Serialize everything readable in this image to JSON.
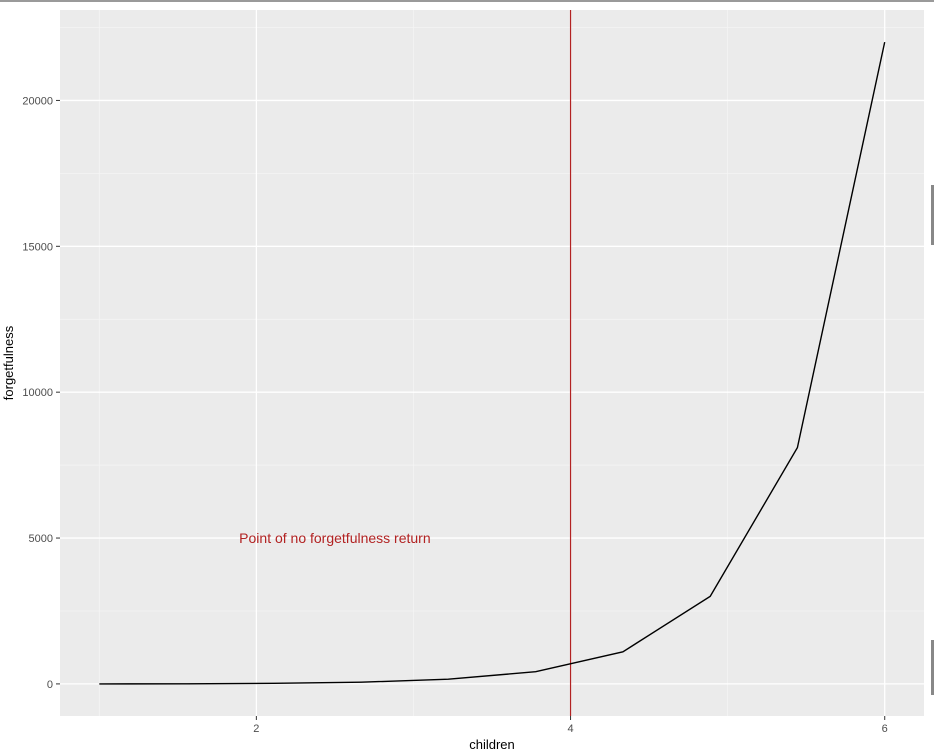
{
  "chart_data": {
    "type": "line",
    "title": "",
    "xlabel": "children",
    "ylabel": "forgetfulness",
    "xlim": [
      0.75,
      6.25
    ],
    "ylim": [
      -1100,
      23100
    ],
    "x_ticks": [
      2,
      4,
      6
    ],
    "y_ticks": [
      0,
      5000,
      10000,
      15000,
      20000
    ],
    "grid": true,
    "series": [
      {
        "x": [
          1.0,
          1.556,
          2.111,
          2.667,
          3.222,
          3.778,
          4.333,
          4.889,
          5.444,
          6.0
        ],
        "y": [
          0,
          5,
          20,
          60,
          160,
          420,
          1100,
          3000,
          8100,
          22000
        ],
        "color": "#000000"
      }
    ],
    "vline": {
      "x": 4,
      "color": "#b22222"
    },
    "annotation": {
      "text": "Point of no forgetfulness return",
      "x": 2.5,
      "y": 5000,
      "color": "#b22222"
    }
  }
}
